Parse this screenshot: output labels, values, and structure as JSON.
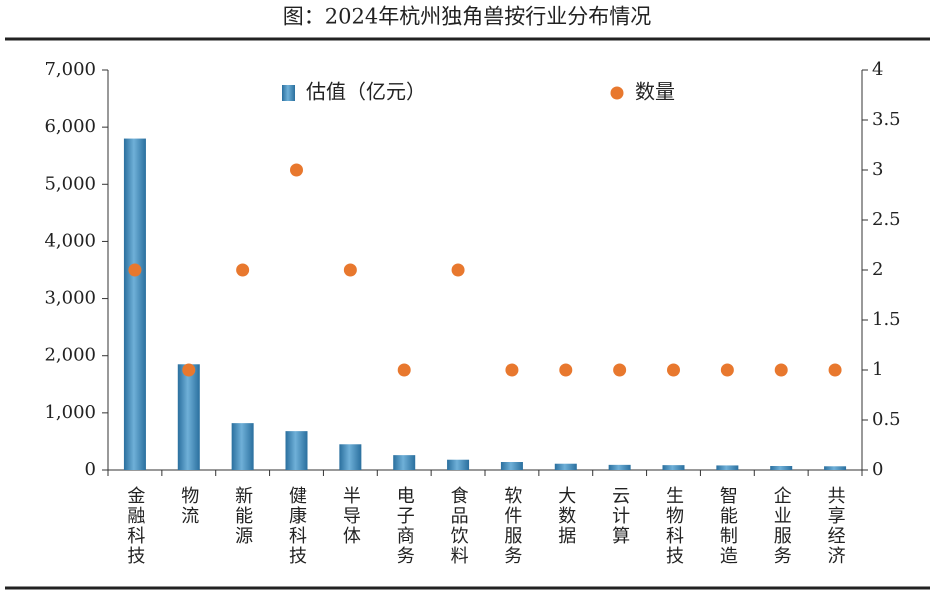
{
  "chart_data": {
    "type": "combo",
    "title": "图：2024年杭州独角兽按行业分布情况",
    "categories": [
      "金融科技",
      "物流",
      "新能源",
      "健康科技",
      "半导体",
      "电子商务",
      "食品饮料",
      "软件服务",
      "大数据",
      "云计算",
      "生物科技",
      "智能制造",
      "企业服务",
      "共享经济"
    ],
    "series": [
      {
        "name": "估值（亿元）",
        "type": "bar",
        "color": "#3a86bb",
        "values": [
          5800,
          1850,
          820,
          680,
          450,
          260,
          180,
          140,
          110,
          90,
          85,
          80,
          70,
          65
        ]
      },
      {
        "name": "数量",
        "type": "scatter",
        "axis": "y2",
        "color": "#e8782e",
        "values": [
          2,
          1,
          2,
          3,
          2,
          1,
          2,
          1,
          1,
          1,
          1,
          1,
          1,
          1
        ]
      }
    ],
    "ylim": [
      0,
      7000
    ],
    "yticks": [
      0,
      {
        "value": 1000,
        "label": "1,000"
      },
      {
        "value": 2000,
        "label": "2,000"
      },
      {
        "value": 3000,
        "label": "3,000"
      },
      {
        "value": 4000,
        "label": "4,000"
      },
      {
        "value": 5000,
        "label": "5,000"
      },
      {
        "value": 6000,
        "label": "6,000"
      },
      {
        "value": 7000,
        "label": "7,000"
      }
    ],
    "y2lim": [
      0,
      4
    ],
    "y2ticks": [
      0,
      0.5,
      1,
      1.5,
      2,
      2.5,
      3,
      3.5,
      4
    ]
  }
}
